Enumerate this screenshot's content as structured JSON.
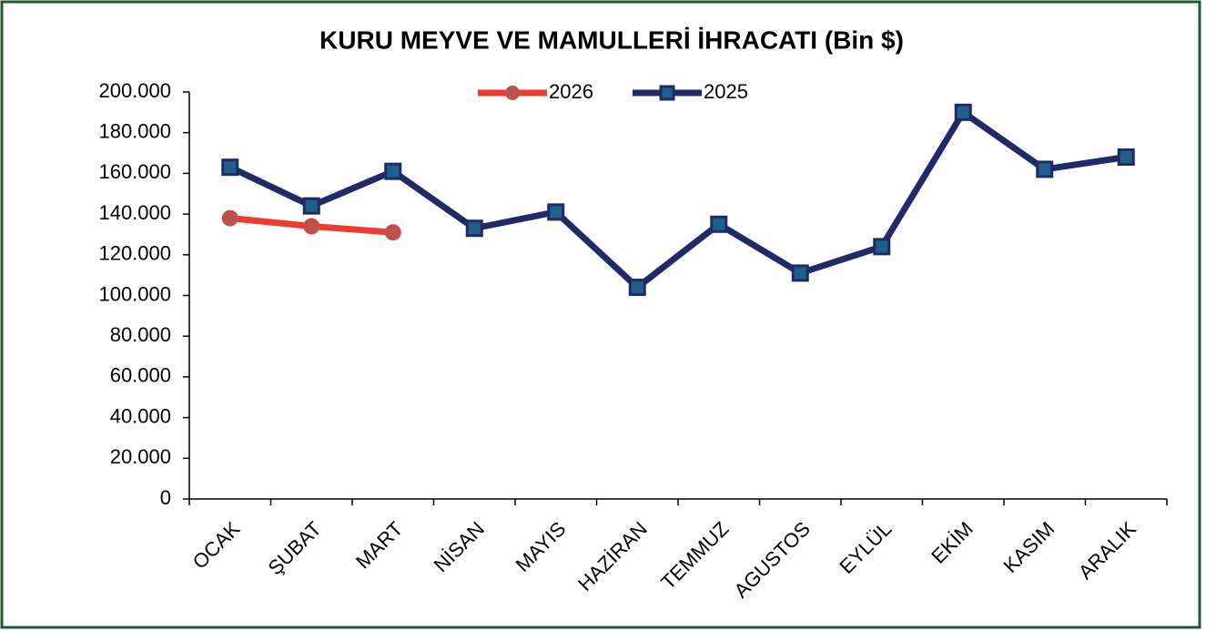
{
  "chart_data": {
    "type": "line",
    "title": "KURU MEYVE VE MAMULLERİ İHRACATI (Bin $)",
    "categories": [
      "OCAK",
      "ŞUBAT",
      "MART",
      "NİSAN",
      "MAYIS",
      "HAZİRAN",
      "TEMMUZ",
      "AGUSTOS",
      "EYLÜL",
      "EKİM",
      "KASIM",
      "ARALIK"
    ],
    "series": [
      {
        "name": "2026",
        "color": "#ee3b2f",
        "marker": "circle",
        "marker_color": "#c0504d",
        "values": [
          138000,
          134000,
          131000,
          null,
          null,
          null,
          null,
          null,
          null,
          null,
          null,
          null
        ]
      },
      {
        "name": "2025",
        "color": "#1f2a66",
        "marker": "square",
        "marker_color": "#1f5f8b",
        "values": [
          163000,
          144000,
          161000,
          133000,
          141000,
          104000,
          135000,
          111000,
          124000,
          190000,
          162000,
          168000
        ]
      }
    ],
    "ylim": [
      0,
      200000
    ],
    "yticks": [
      0,
      {
        "value": 20000,
        "label": "20.000"
      },
      {
        "value": 40000,
        "label": "40.000"
      },
      {
        "value": 60000,
        "label": "60.000"
      },
      {
        "value": 80000,
        "label": "80.000"
      },
      {
        "value": 100000,
        "label": "100.000"
      },
      {
        "value": 120000,
        "label": "120.000"
      },
      {
        "value": 140000,
        "label": "140.000"
      },
      {
        "value": 160000,
        "label": "160.000"
      },
      {
        "value": 180000,
        "label": "180.000"
      },
      {
        "value": 200000,
        "label": "200.000"
      }
    ],
    "grid": false,
    "legend": "top"
  }
}
